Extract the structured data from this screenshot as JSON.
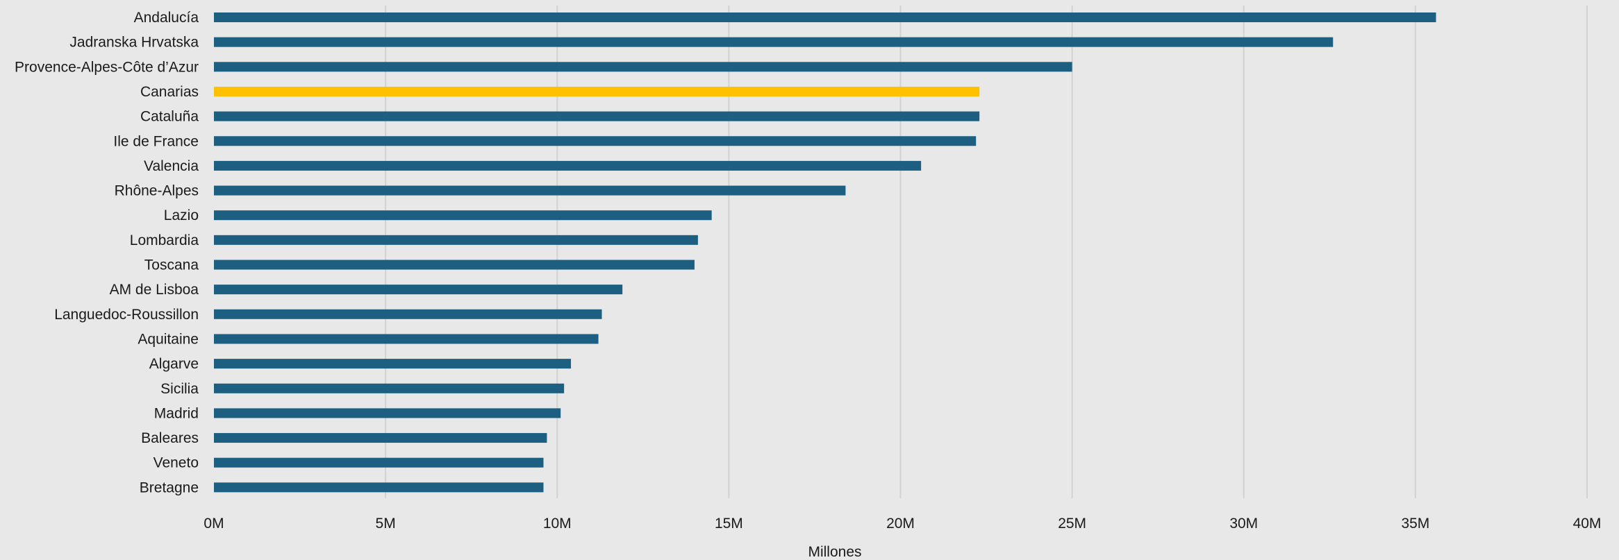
{
  "chart_data": {
    "type": "bar",
    "orientation": "horizontal",
    "categories": [
      "Andalucía",
      "Jadranska Hrvatska",
      "Provence-Alpes-Côte d’Azur",
      "Canarias",
      "Cataluña",
      "Ile de France",
      "Valencia",
      "Rhône-Alpes",
      "Lazio",
      "Lombardia",
      "Toscana",
      "AM de Lisboa",
      "Languedoc-Roussillon",
      "Aquitaine",
      "Algarve",
      "Sicilia",
      "Madrid",
      "Baleares",
      "Veneto",
      "Bretagne"
    ],
    "values": [
      35.6,
      32.6,
      25.0,
      22.3,
      22.3,
      22.2,
      20.6,
      18.4,
      14.5,
      14.1,
      14.0,
      11.9,
      11.3,
      11.2,
      10.4,
      10.2,
      10.1,
      9.7,
      9.6,
      9.6
    ],
    "highlight": "Canarias",
    "xlabel": "Millones",
    "ylabel": "",
    "xlim": [
      0,
      40
    ],
    "x_ticks": [
      0,
      5,
      10,
      15,
      20,
      25,
      30,
      35,
      40
    ],
    "x_tick_labels": [
      "0M",
      "5M",
      "10M",
      "15M",
      "20M",
      "25M",
      "30M",
      "35M",
      "40M"
    ],
    "grid": true,
    "legend": "none",
    "colors": {
      "bar": "#1d5f80",
      "highlight": "#ffc000",
      "background": "#e8e8e8",
      "grid": "#d2d2d2",
      "text": "#1a1a1a"
    }
  }
}
